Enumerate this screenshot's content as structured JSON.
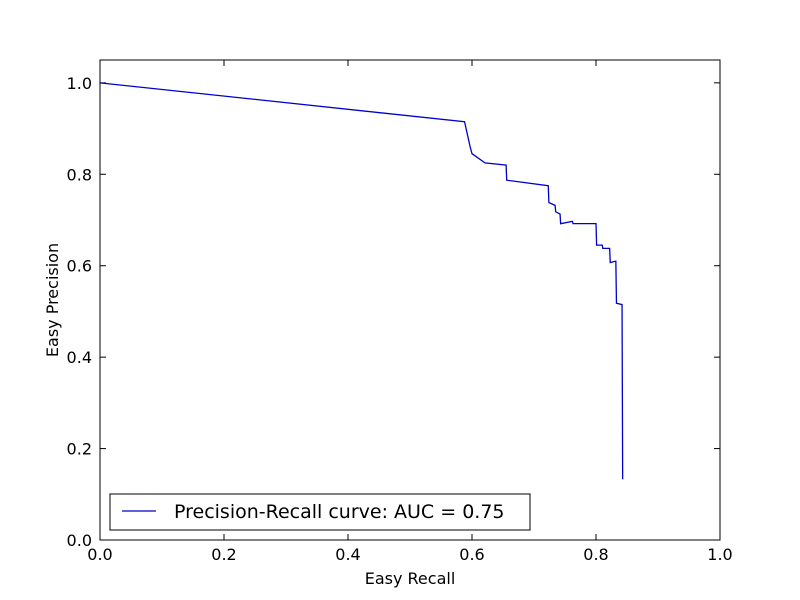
{
  "chart_data": {
    "type": "line",
    "title": "",
    "xlabel": "Easy Recall",
    "ylabel": "Easy Precision",
    "xlim": [
      0.0,
      1.0
    ],
    "ylim": [
      0.0,
      1.05
    ],
    "xticks": [
      0.0,
      0.2,
      0.4,
      0.6,
      0.8,
      1.0
    ],
    "yticks": [
      0.0,
      0.2,
      0.4,
      0.6,
      0.8,
      1.0
    ],
    "x_tick_labels": [
      "0.0",
      "0.2",
      "0.4",
      "0.6",
      "0.8",
      "1.0"
    ],
    "y_tick_labels": [
      "0.0",
      "0.2",
      "0.4",
      "0.6",
      "0.8",
      "1.0"
    ],
    "grid": false,
    "legend_position": "lower-left",
    "series": [
      {
        "name": "Precision-Recall curve: AUC = 0.75",
        "color": "#0000cc",
        "x": [
          0.0,
          0.588,
          0.597,
          0.598,
          0.6,
          0.621,
          0.655,
          0.656,
          0.723,
          0.724,
          0.734,
          0.735,
          0.742,
          0.743,
          0.762,
          0.763,
          0.8,
          0.801,
          0.81,
          0.811,
          0.822,
          0.823,
          0.832,
          0.833,
          0.842,
          0.843
        ],
        "y": [
          1.0,
          0.915,
          0.86,
          0.855,
          0.845,
          0.825,
          0.82,
          0.787,
          0.775,
          0.738,
          0.732,
          0.718,
          0.713,
          0.692,
          0.697,
          0.692,
          0.692,
          0.645,
          0.645,
          0.638,
          0.638,
          0.607,
          0.61,
          0.518,
          0.515,
          0.133
        ]
      }
    ]
  }
}
